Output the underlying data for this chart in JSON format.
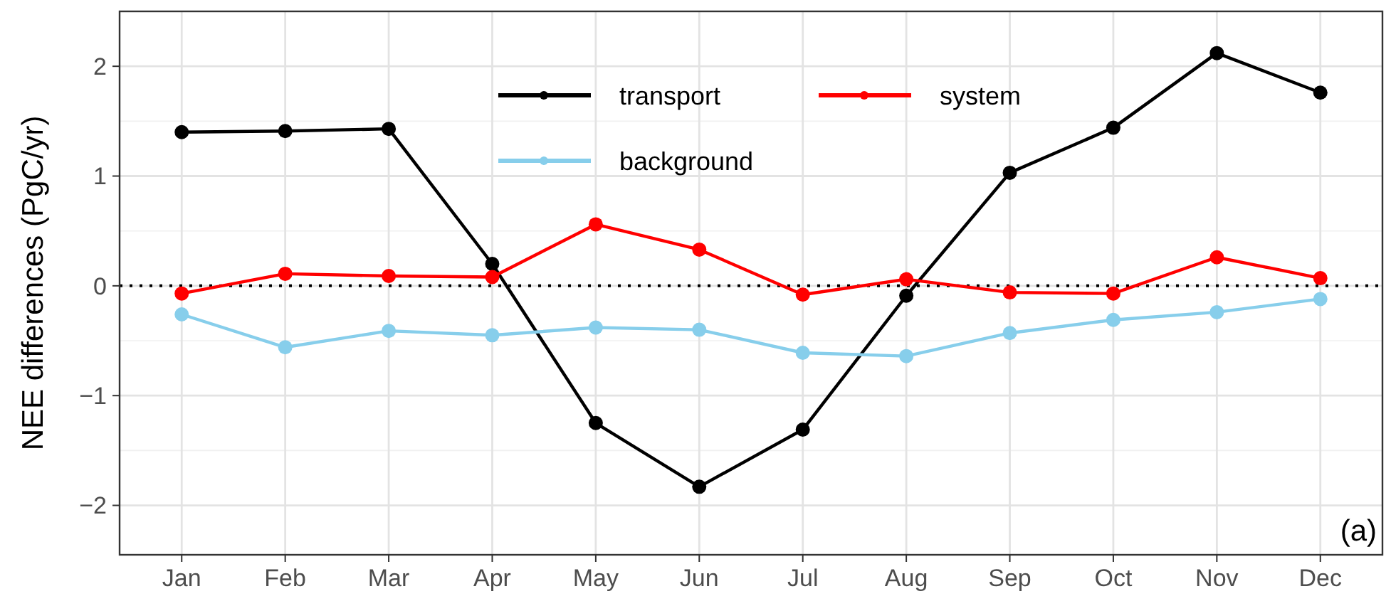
{
  "chart_data": {
    "type": "line",
    "ylabel": "NEE differences (PgC/yr)",
    "categories": [
      "Jan",
      "Feb",
      "Mar",
      "Apr",
      "May",
      "Jun",
      "Jul",
      "Aug",
      "Sep",
      "Oct",
      "Nov",
      "Dec"
    ],
    "series": [
      {
        "name": "transport",
        "color": "#000000",
        "values": [
          1.4,
          1.41,
          1.43,
          0.2,
          -1.25,
          -1.83,
          -1.31,
          -0.09,
          1.03,
          1.44,
          2.12,
          1.76
        ]
      },
      {
        "name": "system",
        "color": "#ff0000",
        "values": [
          -0.07,
          0.11,
          0.09,
          0.08,
          0.56,
          0.33,
          -0.08,
          0.06,
          -0.06,
          -0.07,
          0.26,
          0.07
        ]
      },
      {
        "name": "background",
        "color": "#87ceeb",
        "values": [
          -0.26,
          -0.56,
          -0.41,
          -0.45,
          -0.38,
          -0.4,
          -0.61,
          -0.64,
          -0.43,
          -0.31,
          -0.24,
          -0.12
        ]
      }
    ],
    "ylim": [
      -2.45,
      2.5
    ],
    "yticks": [
      -2,
      -1,
      0,
      1,
      2
    ],
    "grid": true,
    "legend": "top",
    "marker": "circle",
    "line_style": "solid",
    "ref_lines": [
      {
        "axis": "y",
        "value": 0,
        "line_style": "dotted",
        "color": "#000000"
      }
    ],
    "annotations": [
      "(a)"
    ]
  }
}
